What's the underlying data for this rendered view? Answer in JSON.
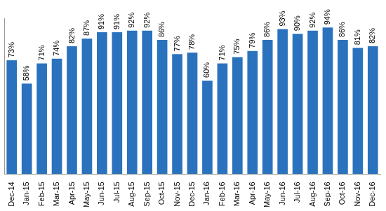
{
  "chart_data": {
    "type": "bar",
    "categories": [
      "Dec-14",
      "Jan-15",
      "Feb-15",
      "Mar-15",
      "Apr-15",
      "May-15",
      "Jun-15",
      "Jul-15",
      "Aug-15",
      "Sep-15",
      "Oct-15",
      "Nov-15",
      "Dec-15",
      "Jan-16",
      "Feb-16",
      "Mar-16",
      "Apr-16",
      "May-16",
      "Jun-16",
      "Jul-16",
      "Aug-16",
      "Sep-16",
      "Oct-16",
      "Nov-16",
      "Dec-16"
    ],
    "values": [
      73,
      58,
      71,
      74,
      82,
      87,
      91,
      91,
      92,
      92,
      86,
      77,
      78,
      60,
      71,
      75,
      79,
      86,
      93,
      90,
      92,
      94,
      86,
      81,
      82
    ],
    "value_labels": [
      "73%",
      "58%",
      "71%",
      "74%",
      "82%",
      "87%",
      "91%",
      "91%",
      "92%",
      "92%",
      "86%",
      "77%",
      "78%",
      "60%",
      "71%",
      "75%",
      "79%",
      "86%",
      "93%",
      "90%",
      "92%",
      "94%",
      "86%",
      "81%",
      "82%"
    ],
    "data_labels": true,
    "color": "#2a72bd",
    "ylim": [
      0,
      100
    ],
    "grid": false,
    "tick_labels": "x"
  }
}
